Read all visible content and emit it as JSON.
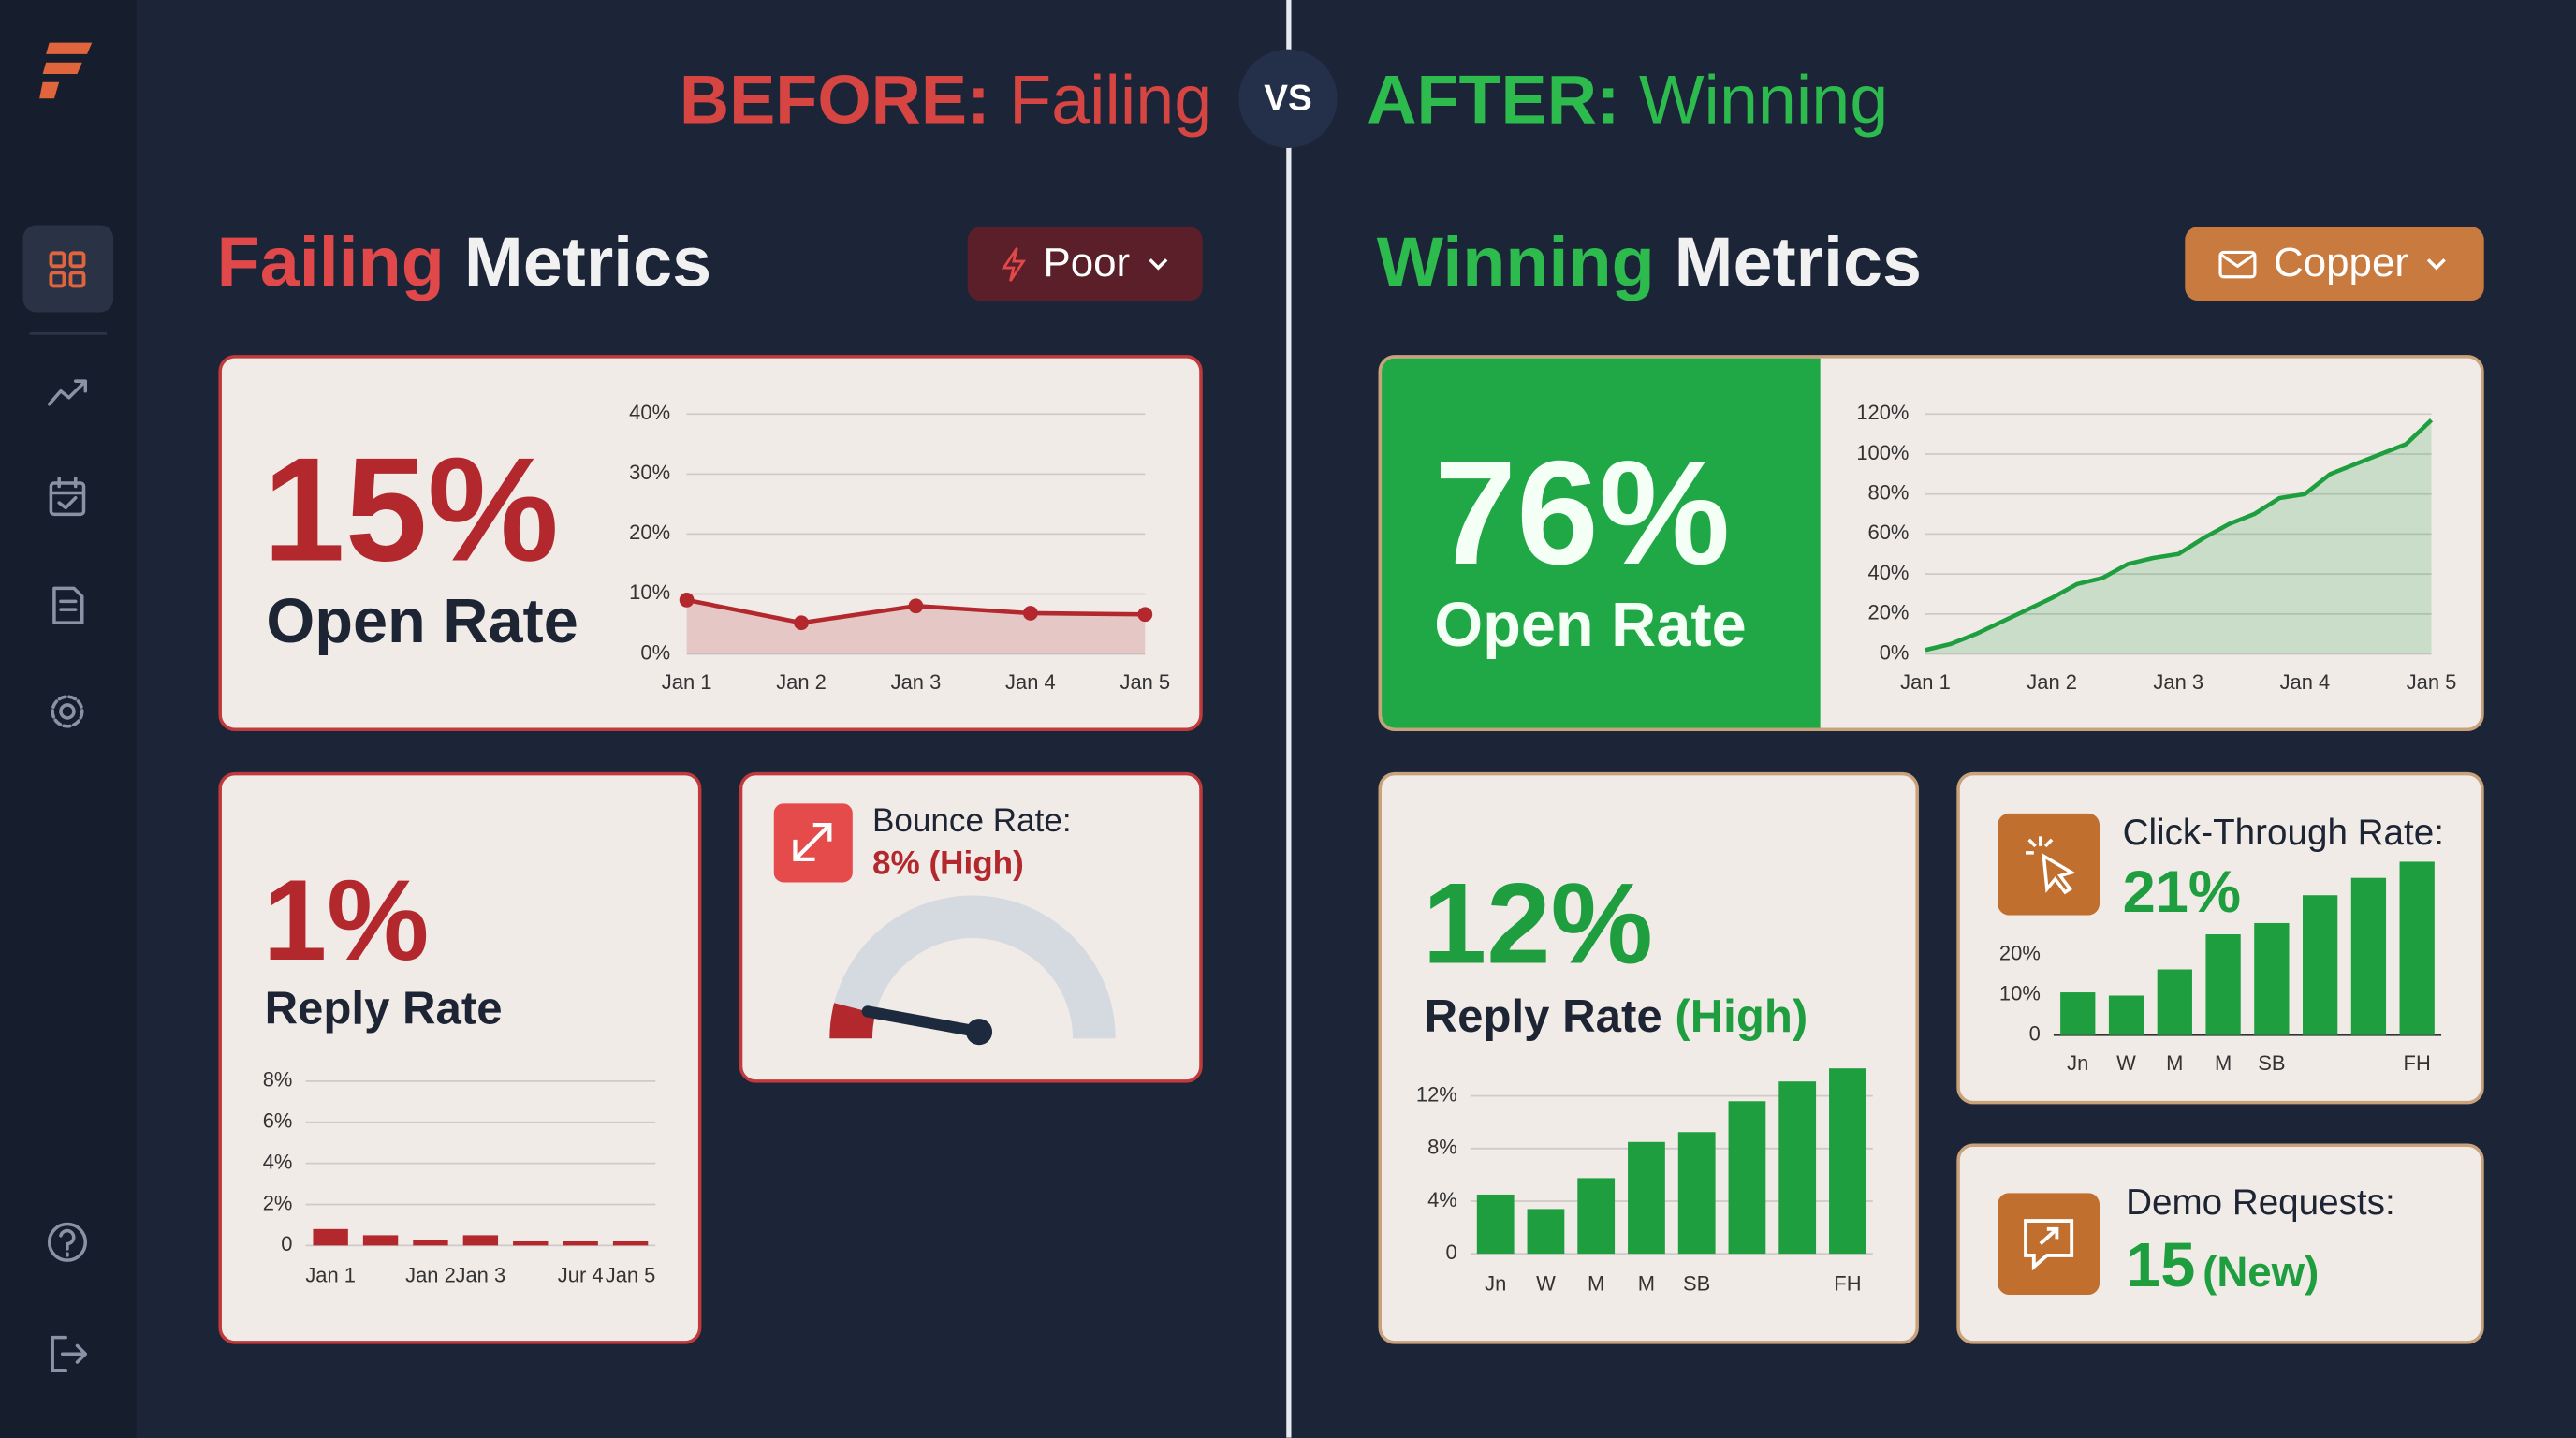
{
  "header": {
    "before_label": "BEFORE:",
    "before_word": "Failing",
    "vs": "VS",
    "after_label": "AFTER:",
    "after_word": "Winning"
  },
  "before": {
    "title_accent": "Failing",
    "title_rest": "Metrics",
    "filter": "Poor",
    "open_rate": {
      "value": "15%",
      "label": "Open Rate",
      "chart": {
        "type": "line",
        "categories": [
          "Jan 1",
          "Jan 2",
          "Jan 3",
          "Jan 4",
          "Jan 5"
        ],
        "values": [
          9,
          5.2,
          8,
          6.8,
          6.6
        ],
        "ylim": [
          0,
          40
        ],
        "yticks": [
          {
            "value": 0,
            "label": "0%"
          },
          {
            "value": 10,
            "label": "10%"
          },
          {
            "value": 20,
            "label": "20%"
          },
          {
            "value": 30,
            "label": "30%"
          },
          {
            "value": 40,
            "label": "40%"
          }
        ],
        "grid": true,
        "color": "#b3282d",
        "area": true,
        "markers": true
      }
    },
    "reply_rate": {
      "value": "1%",
      "label": "Reply Rate",
      "chart": {
        "type": "bar",
        "categories": [
          "Jan 1",
          null,
          "Jan 2",
          "Jan 3",
          null,
          "Jur 4",
          "Jan 5"
        ],
        "values": [
          0.8,
          0.5,
          0.25,
          0.5,
          0.2,
          0.2,
          0.2
        ],
        "ylim": [
          0,
          8
        ],
        "yticks": [
          0,
          {
            "value": 2,
            "label": "2%"
          },
          {
            "value": 4,
            "label": "4%"
          },
          {
            "value": 6,
            "label": "6%"
          },
          {
            "value": 8,
            "label": "8%"
          }
        ],
        "grid": true,
        "color": "#b3282d"
      }
    },
    "bounce_rate": {
      "label": "Bounce Rate:",
      "gauge": {
        "value": 8,
        "value_label": "8% (High)",
        "color": "#b3282d"
      }
    }
  },
  "after": {
    "title_accent": "Winning",
    "title_rest": "Metrics",
    "filter": "Copper",
    "open_rate": {
      "value": "76%",
      "label": "Open Rate",
      "chart": {
        "type": "line",
        "x": [
          1,
          1.2,
          1.4,
          1.6,
          1.8,
          2,
          2.2,
          2.4,
          2.6,
          2.8,
          3,
          3.2,
          3.4,
          3.6,
          3.8,
          4,
          4.2,
          4.4,
          4.6,
          4.8,
          5
        ],
        "values": [
          2,
          5,
          10,
          16,
          22,
          28,
          35,
          38,
          45,
          48,
          50,
          58,
          65,
          70,
          78,
          80,
          90,
          95,
          100,
          105,
          117
        ],
        "xlim": [
          1,
          5
        ],
        "xticks": [
          {
            "value": 1,
            "label": "Jan 1"
          },
          {
            "value": 2,
            "label": "Jan 2"
          },
          {
            "value": 3,
            "label": "Jan 3"
          },
          {
            "value": 4,
            "label": "Jan 4"
          },
          {
            "value": 5,
            "label": "Jan 5"
          }
        ],
        "ylim": [
          0,
          120
        ],
        "yticks": [
          {
            "value": 0,
            "label": "0%"
          },
          {
            "value": 20,
            "label": "20%"
          },
          {
            "value": 40,
            "label": "40%"
          },
          {
            "value": 60,
            "label": "60%"
          },
          {
            "value": 80,
            "label": "80%"
          },
          {
            "value": 100,
            "label": "100%"
          },
          {
            "value": 120,
            "label": "120%"
          }
        ],
        "grid": true,
        "color": "#1e9e3e",
        "area": true
      }
    },
    "reply_rate": {
      "value": "12%",
      "label": "Reply Rate",
      "note": "(High)",
      "chart": {
        "type": "bar",
        "categories": [
          "Jn",
          "W",
          "M",
          "M",
          "SB",
          null,
          null,
          "FH"
        ],
        "values": [
          4.5,
          3.4,
          5.75,
          8.5,
          9.25,
          11.6,
          13.1,
          14.1
        ],
        "ylim": [
          0,
          14.5
        ],
        "yticks": [
          0,
          {
            "value": 4,
            "label": "4%"
          },
          {
            "value": 8,
            "label": "8%"
          },
          {
            "value": 12,
            "label": "12%"
          }
        ],
        "grid": true,
        "color": "#1e9e3e"
      }
    },
    "click_through": {
      "label": "Click-Through Rate:",
      "value": "21%",
      "chart": {
        "type": "bar",
        "categories": [
          "Jn",
          "W",
          "M",
          "M",
          "SB",
          null,
          null,
          "FH"
        ],
        "values": [
          10.6,
          9.8,
          16.3,
          25,
          27.8,
          34.7,
          39,
          43
        ],
        "ylim": [
          0,
          44
        ],
        "yticks": [
          0,
          {
            "value": 10,
            "label": "10%"
          },
          {
            "value": 20,
            "label": "20%"
          }
        ],
        "grid": false,
        "color": "#1e9e3e"
      }
    },
    "demo_requests": {
      "label": "Demo Requests:",
      "value": "15",
      "note": "(New)"
    }
  }
}
